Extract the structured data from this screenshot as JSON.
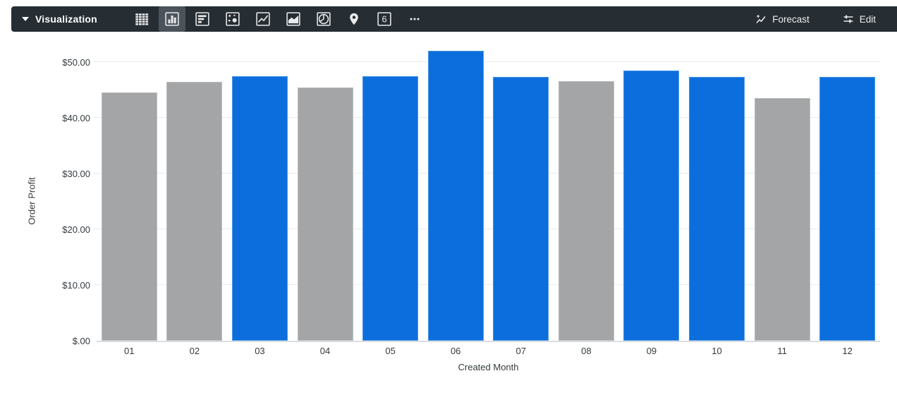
{
  "toolbar": {
    "visualization_label": "Visualization",
    "chart_type_icons": [
      {
        "name": "table",
        "selected": false
      },
      {
        "name": "column",
        "selected": true
      },
      {
        "name": "bar",
        "selected": false
      },
      {
        "name": "scatter",
        "selected": false
      },
      {
        "name": "line",
        "selected": false
      },
      {
        "name": "area",
        "selected": false
      },
      {
        "name": "pie",
        "selected": false
      },
      {
        "name": "map",
        "selected": false
      },
      {
        "name": "single-value",
        "selected": false
      },
      {
        "name": "more",
        "selected": false
      }
    ],
    "single_value_icon_text": "6",
    "forecast_label": "Forecast",
    "edit_label": "Edit"
  },
  "chart_data": {
    "type": "bar",
    "title": "",
    "xlabel": "Created Month",
    "ylabel": "Order Profit",
    "categories": [
      "01",
      "02",
      "03",
      "04",
      "05",
      "06",
      "07",
      "08",
      "09",
      "10",
      "11",
      "12"
    ],
    "values": [
      44.6,
      46.4,
      47.5,
      45.5,
      47.5,
      52.0,
      47.3,
      46.6,
      48.5,
      47.3,
      43.6,
      47.3
    ],
    "bar_colors": [
      "gray",
      "gray",
      "blue",
      "gray",
      "blue",
      "blue",
      "blue",
      "gray",
      "blue",
      "blue",
      "gray",
      "blue"
    ],
    "colors": {
      "blue": "#0b6edc",
      "gray": "#a4a5a7"
    },
    "ylim": [
      0,
      50
    ],
    "ytick_labels": [
      "$.00",
      "$10.00",
      "$20.00",
      "$30.00",
      "$40.00",
      "$50.00"
    ],
    "grid": true,
    "legend": "none"
  },
  "ui_colors": {
    "toolbar_bg": "#262d33",
    "toolbar_selected_bg": "#4b535b",
    "icon": "#e9eaeb",
    "gridline": "#e8eaec",
    "axis_line": "#d9dee3",
    "axis_text": "#333a3e"
  }
}
